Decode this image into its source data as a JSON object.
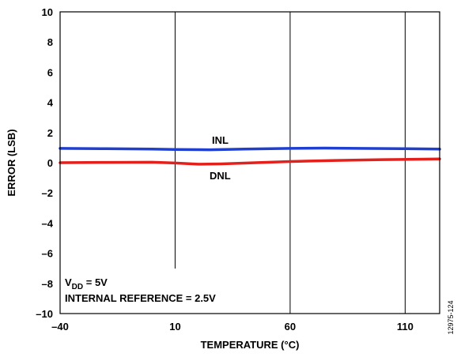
{
  "chart_data": {
    "type": "line",
    "xlabel": "TEMPERATURE (°C)",
    "ylabel": "ERROR (LSB)",
    "xlim": [
      -40,
      125
    ],
    "ylim": [
      -10,
      10
    ],
    "x_ticks": [
      "–40",
      "10",
      "60",
      "110"
    ],
    "x_tick_values": [
      -40,
      10,
      60,
      110
    ],
    "y_ticks": [
      "10",
      "8",
      "6",
      "4",
      "2",
      "0",
      "–2",
      "–4",
      "–6",
      "–8",
      "–10"
    ],
    "y_tick_values": [
      10,
      8,
      6,
      4,
      2,
      0,
      -2,
      -4,
      -6,
      -8,
      -10
    ],
    "grid": "vertical",
    "series": [
      {
        "name": "INL",
        "color": "#1f3fd1",
        "x": [
          -40,
          -20,
          0,
          10,
          25,
          40,
          60,
          75,
          90,
          110,
          125
        ],
        "y": [
          0.95,
          0.93,
          0.9,
          0.88,
          0.86,
          0.9,
          0.95,
          0.97,
          0.95,
          0.93,
          0.9
        ]
      },
      {
        "name": "DNL",
        "color": "#e3201b",
        "x": [
          -40,
          -20,
          0,
          10,
          20,
          30,
          45,
          60,
          80,
          100,
          125
        ],
        "y": [
          0.0,
          0.02,
          0.03,
          -0.02,
          -0.1,
          -0.08,
          0.0,
          0.08,
          0.15,
          0.2,
          0.25
        ]
      }
    ],
    "annotations": {
      "inl_label": "INL",
      "dnl_label": "DNL",
      "vdd_main": "V",
      "vdd_sub": "DD",
      "vdd_rest": " = 5V",
      "reference": "INTERNAL REFERENCE = 2.5V"
    },
    "figure_id": "12975-124"
  }
}
